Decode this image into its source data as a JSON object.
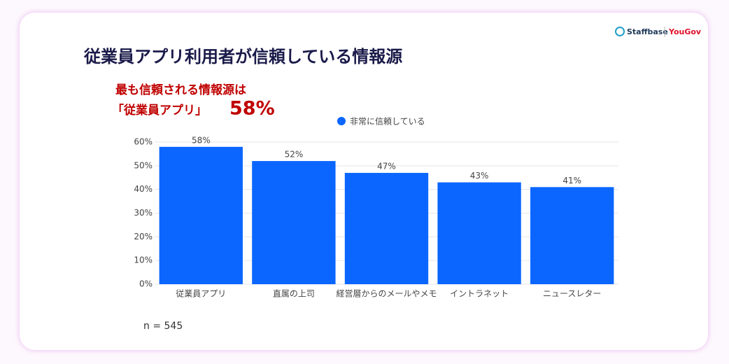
{
  "header": {
    "brand": "Staffbase",
    "partner": "YouGov"
  },
  "chart_data": {
    "type": "bar",
    "title": "従業員アプリ利用者が信頼している情報源",
    "annotation": {
      "line1": "最も信頼される情報源は",
      "line2": "「従業員アプリ」",
      "highlight": "58%"
    },
    "categories": [
      "従業員アプリ",
      "直属の上司",
      "経営層からのメールやメモ",
      "イントラネット",
      "ニュースレター"
    ],
    "series": [
      {
        "name": "非常に信頼している",
        "color": "#0a66ff",
        "values": [
          58,
          52,
          47,
          43,
          41
        ],
        "value_labels": [
          "58%",
          "52%",
          "47%",
          "43%",
          "41%"
        ]
      }
    ],
    "ylim": [
      0,
      60
    ],
    "yticks": [
      {
        "value": 0,
        "label": "0%"
      },
      {
        "value": 10,
        "label": "10%"
      },
      {
        "value": 20,
        "label": "20%"
      },
      {
        "value": 30,
        "label": "30%"
      },
      {
        "value": 40,
        "label": "40%"
      },
      {
        "value": 50,
        "label": "50%"
      },
      {
        "value": 60,
        "label": "60%"
      }
    ],
    "grid": true,
    "legend": "top",
    "note": "n = 545"
  }
}
